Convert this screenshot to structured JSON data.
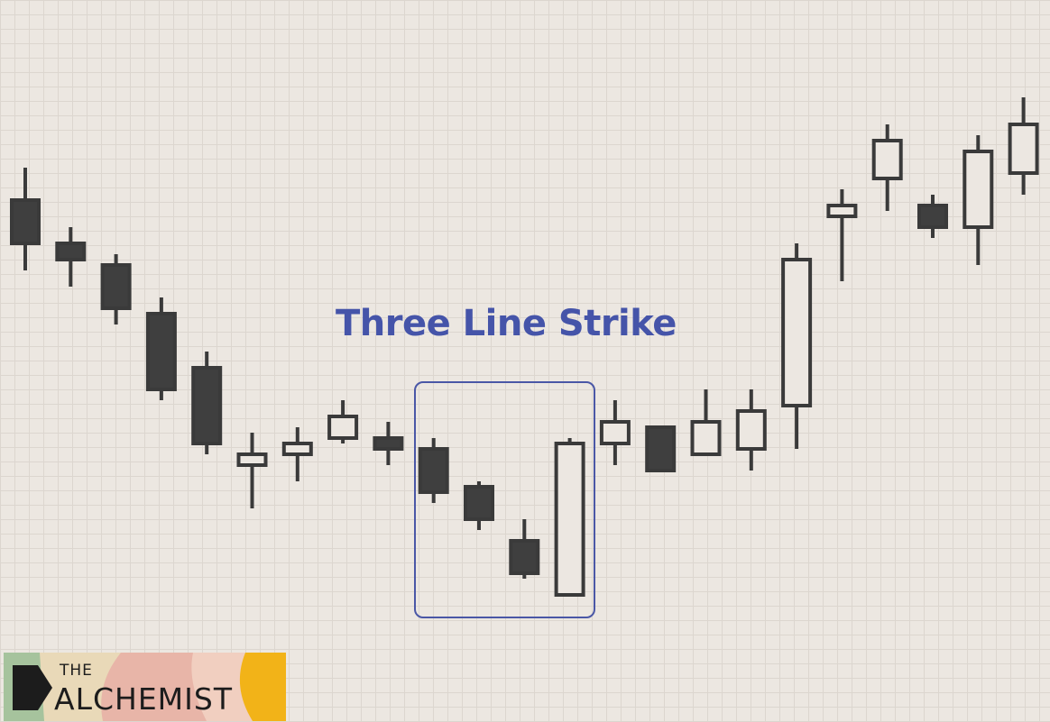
{
  "title": "Three Line Strike",
  "colors": {
    "background": "#ece7e1",
    "grid": "#dcd6cf",
    "bearish_fill": "#3f3f3f",
    "bullish_fill": "#ece7e1",
    "candle_stroke": "#3a3a3a",
    "title": "#4554a9",
    "highlight_box": "#4a57a6"
  },
  "logo": {
    "line1": "THE",
    "line2": "ALCHEMIST",
    "colors": [
      "#a6c39d",
      "#e9d9b8",
      "#e8b5a8",
      "#f2b318"
    ]
  },
  "chart_data": {
    "type": "candlestick",
    "title": "Three Line Strike",
    "xlabel": "",
    "ylabel": "",
    "ylim": [
      0,
      100
    ],
    "grid": true,
    "highlight": {
      "label": "Three Line Strike",
      "candles": [
        9,
        12
      ]
    },
    "candles": [
      {
        "open": 78,
        "close": 70,
        "high": 84,
        "low": 65,
        "dir": "bear"
      },
      {
        "open": 70,
        "close": 67,
        "high": 73,
        "low": 62,
        "dir": "bear"
      },
      {
        "open": 66,
        "close": 58,
        "high": 68,
        "low": 55,
        "dir": "bear"
      },
      {
        "open": 57,
        "close": 43,
        "high": 60,
        "low": 41,
        "dir": "bear"
      },
      {
        "open": 47,
        "close": 33,
        "high": 50,
        "low": 31,
        "dir": "bear"
      },
      {
        "open": 29,
        "close": 31,
        "high": 35,
        "low": 21,
        "dir": "bull"
      },
      {
        "open": 31,
        "close": 33,
        "high": 36,
        "low": 26,
        "dir": "bull"
      },
      {
        "open": 34,
        "close": 38,
        "high": 41,
        "low": 33,
        "dir": "bull"
      },
      {
        "open": 34,
        "close": 32,
        "high": 37,
        "low": 29,
        "dir": "bear"
      },
      {
        "open": 32,
        "close": 24,
        "high": 34,
        "low": 22,
        "dir": "bear"
      },
      {
        "open": 25,
        "close": 19,
        "high": 26,
        "low": 17,
        "dir": "bear"
      },
      {
        "open": 15,
        "close": 9,
        "high": 19,
        "low": 8,
        "dir": "bear"
      },
      {
        "open": 5,
        "close": 33,
        "high": 34,
        "low": 5,
        "dir": "bull"
      },
      {
        "open": 33,
        "close": 37,
        "high": 41,
        "low": 29,
        "dir": "bull"
      },
      {
        "open": 36,
        "close": 28,
        "high": 36,
        "low": 28,
        "dir": "bear"
      },
      {
        "open": 31,
        "close": 37,
        "high": 43,
        "low": 31,
        "dir": "bull"
      },
      {
        "open": 32,
        "close": 39,
        "high": 43,
        "low": 28,
        "dir": "bull"
      },
      {
        "open": 40,
        "close": 67,
        "high": 70,
        "low": 32,
        "dir": "bull"
      },
      {
        "open": 75,
        "close": 77,
        "high": 80,
        "low": 63,
        "dir": "bull"
      },
      {
        "open": 82,
        "close": 89,
        "high": 92,
        "low": 76,
        "dir": "bull"
      },
      {
        "open": 77,
        "close": 73,
        "high": 79,
        "low": 71,
        "dir": "bear"
      },
      {
        "open": 73,
        "close": 87,
        "high": 90,
        "low": 66,
        "dir": "bull"
      },
      {
        "open": 83,
        "close": 92,
        "high": 97,
        "low": 79,
        "dir": "bull"
      }
    ]
  }
}
